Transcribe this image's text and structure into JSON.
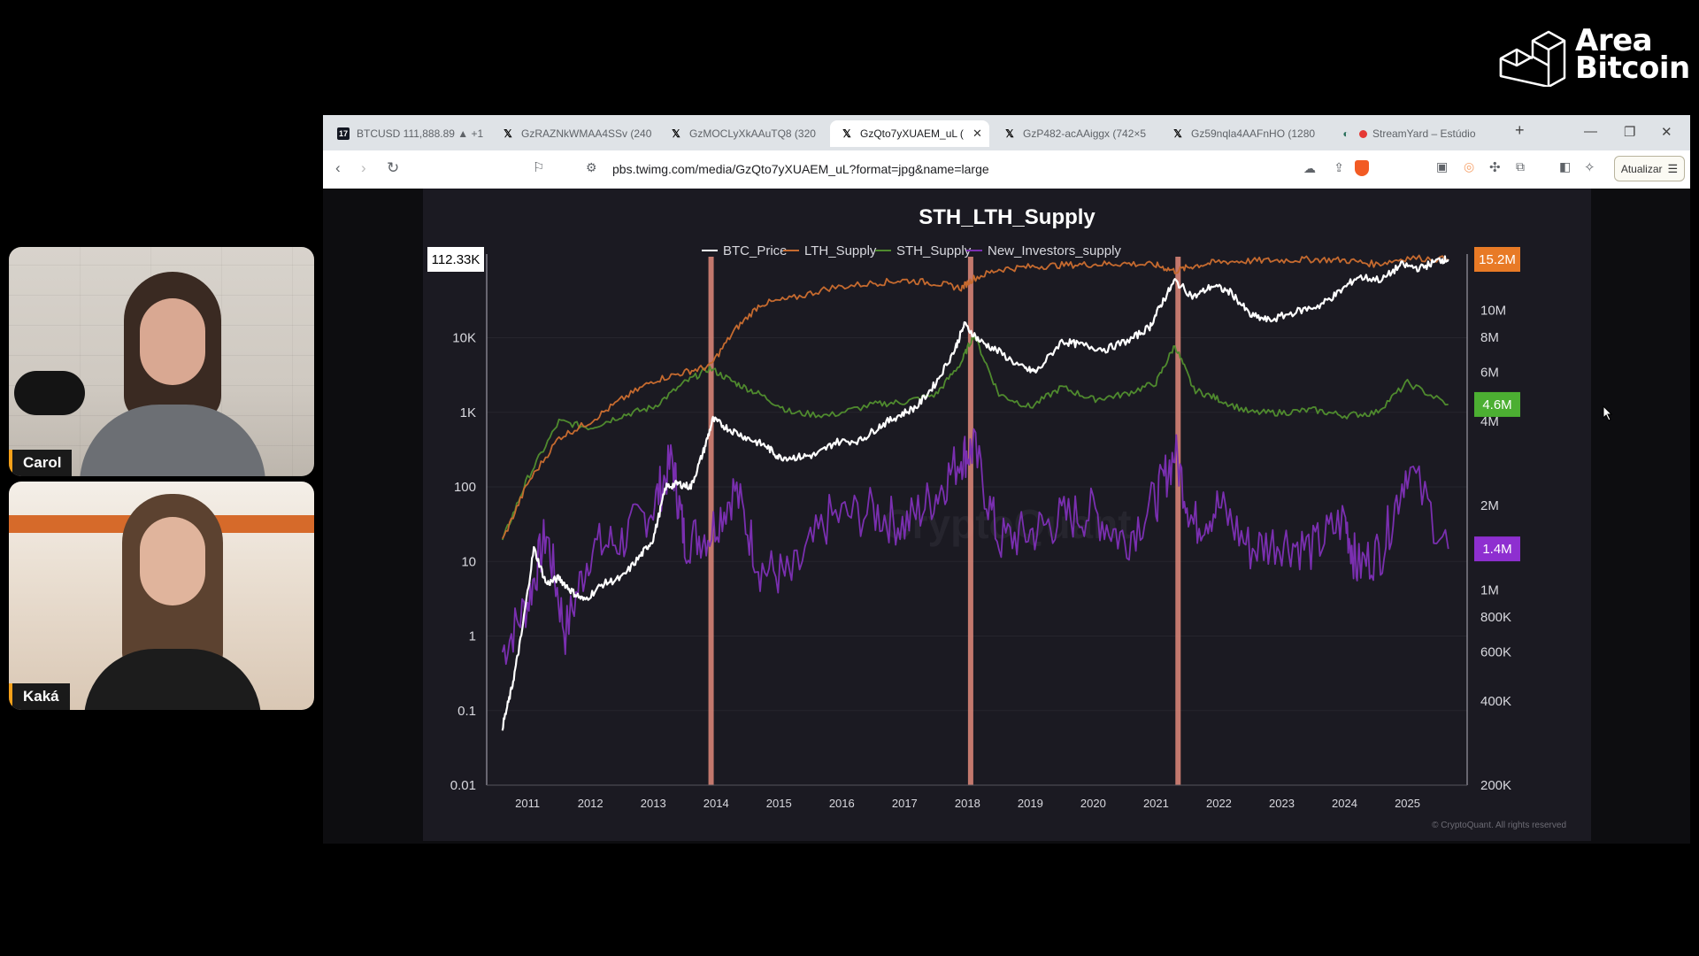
{
  "logo": {
    "line1": "Area",
    "line2": "Bitcoin"
  },
  "participants": [
    {
      "name": "Carol"
    },
    {
      "name": "Kaká"
    }
  ],
  "browser": {
    "tabs": [
      {
        "icon": "tradingview-icon",
        "title": "BTCUSD 111,888.89 ▲ +1",
        "active": false
      },
      {
        "icon": "x-icon",
        "title": "GzRAZNkWMAA4SSv (240",
        "active": false
      },
      {
        "icon": "x-icon",
        "title": "GzMOCLyXkAAuTQ8 (320",
        "active": false
      },
      {
        "icon": "x-icon",
        "title": "GzQto7yXUAEM_uL (",
        "active": true
      },
      {
        "icon": "x-icon",
        "title": "GzP482-acAAiggx (742×5",
        "active": false
      },
      {
        "icon": "x-icon",
        "title": "Gz59nqla4AAFnHO (1280",
        "active": false
      },
      {
        "icon": "streamyard-icon",
        "title": "StreamYard – Estúdio",
        "active": false
      }
    ],
    "url": "pbs.twimg.com/media/GzQto7yXUAEM_uL?format=jpg&name=large",
    "update_button": "Atualizar"
  },
  "chart_data": {
    "type": "line",
    "title": "STH_LTH_Supply",
    "legend": [
      "BTC_Price",
      "LTH_Supply",
      "STH_Supply",
      "New_Investors_supply"
    ],
    "legend_position": "top",
    "colors": {
      "BTC_Price": "#ffffff",
      "LTH_Supply": "#c56a2f",
      "STH_Supply": "#4f8a2e",
      "New_Investors_supply": "#7a2fb0",
      "highlight": "#e08a7a"
    },
    "x_ticks": [
      "2011",
      "2012",
      "2013",
      "2014",
      "2015",
      "2016",
      "2017",
      "2018",
      "2019",
      "2020",
      "2021",
      "2022",
      "2023",
      "2024",
      "2025"
    ],
    "y_left_ticks": [
      "0.01",
      "0.1",
      "1",
      "10",
      "100",
      "1K",
      "10K"
    ],
    "y_left_scale": "log",
    "y_left_current": "112.33K",
    "y_right_ticks": [
      "10M",
      "8M",
      "6M",
      "4M",
      "2M",
      "1M",
      "800K",
      "600K",
      "400K",
      "200K"
    ],
    "y_right_scale": "log",
    "y_right_badges": [
      {
        "label": "15.2M",
        "color": "#e87a26"
      },
      {
        "label": "4.6M",
        "color": "#4caf32"
      },
      {
        "label": "1.4M",
        "color": "#8e2fd0"
      }
    ],
    "highlight_lines_x": [
      2013.92,
      2018.05,
      2021.35
    ],
    "watermark": "CryptoQuant",
    "copyright": "© CryptoQuant. All rights reserved",
    "series": [
      {
        "name": "BTC_Price",
        "x": [
          2010.6,
          2010.75,
          2010.9,
          2011.1,
          2011.3,
          2011.5,
          2011.7,
          2011.9,
          2012.2,
          2012.5,
          2012.8,
          2013.0,
          2013.2,
          2013.4,
          2013.6,
          2013.8,
          2013.95,
          2014.2,
          2014.5,
          2014.8,
          2015.0,
          2015.3,
          2015.6,
          2015.9,
          2016.3,
          2016.6,
          2016.9,
          2017.2,
          2017.5,
          2017.8,
          2017.95,
          2018.2,
          2018.5,
          2018.9,
          2019.1,
          2019.5,
          2019.8,
          2020.2,
          2020.6,
          2020.9,
          2021.1,
          2021.3,
          2021.6,
          2021.9,
          2022.2,
          2022.5,
          2022.8,
          2023.2,
          2023.6,
          2023.9,
          2024.2,
          2024.6,
          2024.9,
          2025.2,
          2025.5,
          2025.65
        ],
        "values": [
          0.06,
          0.2,
          1,
          15,
          5,
          6,
          4,
          3,
          5,
          6,
          12,
          20,
          100,
          110,
          100,
          300,
          800,
          600,
          450,
          350,
          250,
          250,
          270,
          400,
          420,
          650,
          900,
          1200,
          2500,
          7000,
          15000,
          9000,
          6500,
          3800,
          3500,
          9000,
          8000,
          7000,
          9500,
          14000,
          30000,
          58000,
          35000,
          50000,
          40000,
          20000,
          17000,
          22000,
          27000,
          40000,
          65000,
          60000,
          95000,
          85000,
          110000,
          112330
        ]
      },
      {
        "name": "LTH_Supply",
        "x": [
          2010.6,
          2011.0,
          2011.5,
          2012.0,
          2012.5,
          2013.0,
          2013.5,
          2013.9,
          2014.3,
          2014.7,
          2015.2,
          2015.8,
          2016.5,
          2017.0,
          2017.5,
          2017.9,
          2018.1,
          2018.5,
          2019.0,
          2019.5,
          2020.0,
          2020.5,
          2021.0,
          2021.3,
          2021.6,
          2022.0,
          2022.5,
          2023.0,
          2023.5,
          2024.0,
          2024.5,
          2025.0,
          2025.65
        ],
        "values": [
          1.5,
          2.4,
          3.5,
          4.0,
          4.8,
          5.6,
          6.0,
          6.3,
          8.5,
          10.5,
          11.0,
          12.0,
          12.5,
          12.8,
          12.5,
          12.0,
          13.0,
          14.0,
          14.3,
          14.5,
          14.6,
          14.7,
          14.5,
          13.8,
          14.4,
          14.9,
          15.0,
          15.1,
          15.2,
          15.1,
          14.6,
          15.4,
          15.2
        ]
      },
      {
        "name": "STH_Supply",
        "x": [
          2010.6,
          2011.0,
          2011.5,
          2012.0,
          2012.5,
          2013.0,
          2013.5,
          2013.9,
          2014.3,
          2014.7,
          2015.2,
          2015.8,
          2016.5,
          2017.0,
          2017.5,
          2017.9,
          2018.1,
          2018.5,
          2019.0,
          2019.5,
          2020.0,
          2020.5,
          2021.0,
          2021.3,
          2021.6,
          2022.0,
          2022.5,
          2023.0,
          2023.5,
          2024.0,
          2024.5,
          2025.0,
          2025.65
        ],
        "values": [
          1.5,
          2.5,
          4.0,
          3.8,
          4.2,
          4.5,
          5.5,
          6.2,
          5.5,
          5.0,
          4.3,
          4.2,
          4.6,
          4.7,
          5.0,
          6.5,
          8.2,
          5.0,
          4.5,
          5.3,
          4.8,
          5.0,
          5.5,
          7.5,
          5.2,
          4.8,
          4.3,
          4.3,
          4.4,
          4.2,
          4.3,
          5.5,
          4.6
        ]
      },
      {
        "name": "New_Investors_supply",
        "x": [
          2010.6,
          2011.0,
          2011.3,
          2011.6,
          2012.0,
          2012.5,
          2013.0,
          2013.3,
          2013.5,
          2013.9,
          2014.3,
          2014.7,
          2015.2,
          2015.8,
          2016.5,
          2017.0,
          2017.5,
          2017.9,
          2018.1,
          2018.5,
          2019.0,
          2019.5,
          2020.0,
          2020.5,
          2021.0,
          2021.3,
          2021.6,
          2022.0,
          2022.5,
          2023.0,
          2023.5,
          2024.0,
          2024.2,
          2024.6,
          2025.0,
          2025.65
        ],
        "values": [
          0.6,
          0.9,
          1.6,
          0.7,
          1.4,
          1.5,
          2.0,
          2.9,
          1.5,
          1.6,
          2.3,
          1.2,
          1.1,
          1.8,
          1.9,
          1.7,
          2.2,
          3.0,
          3.2,
          1.5,
          1.6,
          1.8,
          1.9,
          1.5,
          2.1,
          3.1,
          1.7,
          2.0,
          1.4,
          1.5,
          1.4,
          1.8,
          1.2,
          1.4,
          2.8,
          1.4
        ]
      }
    ]
  }
}
